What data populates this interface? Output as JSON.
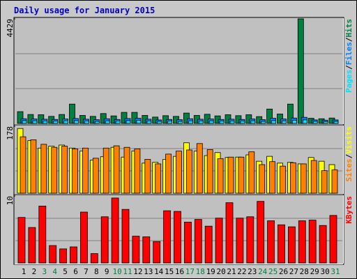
{
  "chart_data": [
    {
      "type": "bar",
      "title": "Daily usage for January 2015",
      "categories": [
        "1",
        "2",
        "3",
        "4",
        "5",
        "6",
        "7",
        "8",
        "9",
        "10",
        "11",
        "12",
        "13",
        "14",
        "15",
        "16",
        "17",
        "18",
        "19",
        "20",
        "21",
        "22",
        "23",
        "24",
        "25",
        "26",
        "27",
        "28",
        "29",
        "30",
        "31"
      ],
      "category_colors": [
        "#000000",
        "#000000",
        "#008040",
        "#008040",
        "#000000",
        "#000000",
        "#000000",
        "#000000",
        "#000000",
        "#008040",
        "#008040",
        "#000000",
        "#000000",
        "#000000",
        "#000000",
        "#000000",
        "#008040",
        "#008040",
        "#000000",
        "#000000",
        "#000000",
        "#000000",
        "#000000",
        "#008040",
        "#008040",
        "#000000",
        "#000000",
        "#000000",
        "#000000",
        "#000000",
        "#008040"
      ],
      "legend_separator": "/",
      "ylim": [
        0,
        4429
      ],
      "yticks": [
        4429
      ],
      "series": [
        {
          "name": "Hits",
          "color": "#008040",
          "values": [
            500,
            380,
            370,
            300,
            380,
            820,
            340,
            300,
            420,
            320,
            470,
            470,
            340,
            270,
            330,
            300,
            440,
            340,
            390,
            320,
            370,
            330,
            370,
            290,
            610,
            400,
            820,
            4429,
            220,
            200,
            230
          ]
        },
        {
          "name": "Files",
          "color": "#0080ff",
          "values": [
            200,
            190,
            180,
            170,
            190,
            210,
            180,
            160,
            200,
            170,
            210,
            220,
            180,
            150,
            170,
            160,
            200,
            180,
            190,
            170,
            180,
            170,
            190,
            160,
            220,
            190,
            230,
            260,
            150,
            140,
            150
          ]
        },
        {
          "name": "Pages",
          "color": "#00e0ff",
          "values": [
            120,
            110,
            100,
            100,
            110,
            120,
            100,
            90,
            110,
            100,
            120,
            130,
            100,
            90,
            100,
            90,
            110,
            100,
            110,
            100,
            100,
            100,
            110,
            90,
            120,
            110,
            130,
            150,
            90,
            80,
            90
          ]
        }
      ]
    },
    {
      "type": "bar",
      "legend_separator": "/",
      "ylim": [
        0,
        178
      ],
      "yticks": [
        178
      ],
      "series": [
        {
          "name": "Visits",
          "color": "#ffff00",
          "values": [
            172,
            140,
            120,
            125,
            128,
            120,
            112,
            88,
            97,
            122,
            96,
            112,
            80,
            82,
            90,
            98,
            134,
            112,
            100,
            108,
            95,
            96,
            102,
            85,
            98,
            80,
            82,
            78,
            95,
            85,
            76
          ]
        },
        {
          "name": "Sites",
          "color": "#ff8000",
          "values": [
            150,
            142,
            130,
            122,
            125,
            118,
            120,
            93,
            120,
            126,
            122,
            118,
            90,
            78,
            104,
            112,
            115,
            132,
            116,
            92,
            96,
            96,
            110,
            76,
            84,
            72,
            81,
            78,
            87,
            60,
            62
          ]
        }
      ]
    },
    {
      "type": "bar",
      "legend_separator": "/",
      "ylim": [
        0,
        10
      ],
      "yticks": [
        10
      ],
      "series": [
        {
          "name": "KBytes",
          "color": "#ff0000",
          "values": [
            6.8,
            5.3,
            8.5,
            2.6,
            2.1,
            2.4,
            7.6,
            1.4,
            6.9,
            9.7,
            8.0,
            4.0,
            3.9,
            3.2,
            7.8,
            7.7,
            6.1,
            6.5,
            5.5,
            6.7,
            9.0,
            6.7,
            6.9,
            9.2,
            6.3,
            5.7,
            5.4,
            6.3,
            6.4,
            5.6,
            7.1
          ]
        }
      ]
    }
  ]
}
